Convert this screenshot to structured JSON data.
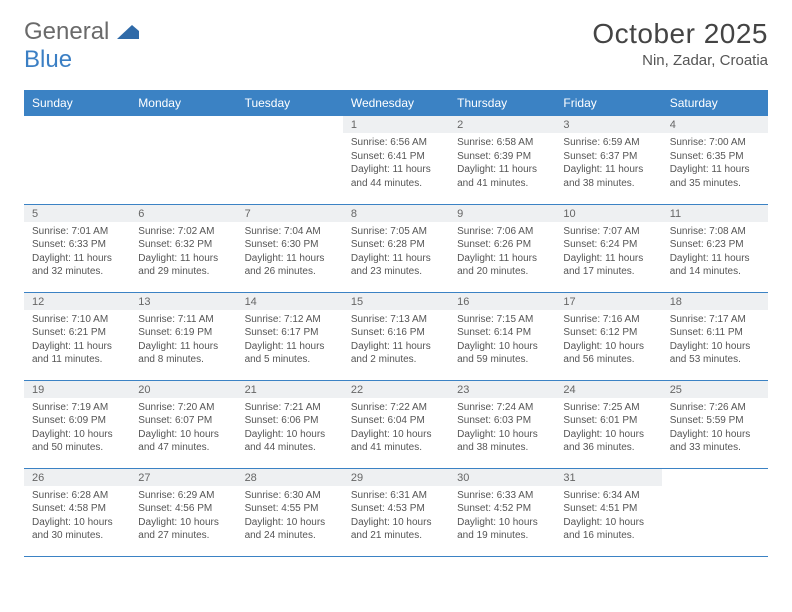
{
  "logo": {
    "general": "General",
    "blue": "Blue"
  },
  "title": "October 2025",
  "subtitle": "Nin, Zadar, Croatia",
  "theme": {
    "header_bg": "#3b82c4",
    "header_text": "#ffffff",
    "daynum_bg": "#eef0f2",
    "row_border": "#3b82c4",
    "body_text": "#555555",
    "title_color": "#444444",
    "logo_gray": "#6a6a6a",
    "logo_blue": "#3b7fc4"
  },
  "weekdays": [
    "Sunday",
    "Monday",
    "Tuesday",
    "Wednesday",
    "Thursday",
    "Friday",
    "Saturday"
  ],
  "weeks": [
    [
      null,
      null,
      null,
      {
        "n": "1",
        "l1": "Sunrise: 6:56 AM",
        "l2": "Sunset: 6:41 PM",
        "l3": "Daylight: 11 hours",
        "l4": "and 44 minutes."
      },
      {
        "n": "2",
        "l1": "Sunrise: 6:58 AM",
        "l2": "Sunset: 6:39 PM",
        "l3": "Daylight: 11 hours",
        "l4": "and 41 minutes."
      },
      {
        "n": "3",
        "l1": "Sunrise: 6:59 AM",
        "l2": "Sunset: 6:37 PM",
        "l3": "Daylight: 11 hours",
        "l4": "and 38 minutes."
      },
      {
        "n": "4",
        "l1": "Sunrise: 7:00 AM",
        "l2": "Sunset: 6:35 PM",
        "l3": "Daylight: 11 hours",
        "l4": "and 35 minutes."
      }
    ],
    [
      {
        "n": "5",
        "l1": "Sunrise: 7:01 AM",
        "l2": "Sunset: 6:33 PM",
        "l3": "Daylight: 11 hours",
        "l4": "and 32 minutes."
      },
      {
        "n": "6",
        "l1": "Sunrise: 7:02 AM",
        "l2": "Sunset: 6:32 PM",
        "l3": "Daylight: 11 hours",
        "l4": "and 29 minutes."
      },
      {
        "n": "7",
        "l1": "Sunrise: 7:04 AM",
        "l2": "Sunset: 6:30 PM",
        "l3": "Daylight: 11 hours",
        "l4": "and 26 minutes."
      },
      {
        "n": "8",
        "l1": "Sunrise: 7:05 AM",
        "l2": "Sunset: 6:28 PM",
        "l3": "Daylight: 11 hours",
        "l4": "and 23 minutes."
      },
      {
        "n": "9",
        "l1": "Sunrise: 7:06 AM",
        "l2": "Sunset: 6:26 PM",
        "l3": "Daylight: 11 hours",
        "l4": "and 20 minutes."
      },
      {
        "n": "10",
        "l1": "Sunrise: 7:07 AM",
        "l2": "Sunset: 6:24 PM",
        "l3": "Daylight: 11 hours",
        "l4": "and 17 minutes."
      },
      {
        "n": "11",
        "l1": "Sunrise: 7:08 AM",
        "l2": "Sunset: 6:23 PM",
        "l3": "Daylight: 11 hours",
        "l4": "and 14 minutes."
      }
    ],
    [
      {
        "n": "12",
        "l1": "Sunrise: 7:10 AM",
        "l2": "Sunset: 6:21 PM",
        "l3": "Daylight: 11 hours",
        "l4": "and 11 minutes."
      },
      {
        "n": "13",
        "l1": "Sunrise: 7:11 AM",
        "l2": "Sunset: 6:19 PM",
        "l3": "Daylight: 11 hours",
        "l4": "and 8 minutes."
      },
      {
        "n": "14",
        "l1": "Sunrise: 7:12 AM",
        "l2": "Sunset: 6:17 PM",
        "l3": "Daylight: 11 hours",
        "l4": "and 5 minutes."
      },
      {
        "n": "15",
        "l1": "Sunrise: 7:13 AM",
        "l2": "Sunset: 6:16 PM",
        "l3": "Daylight: 11 hours",
        "l4": "and 2 minutes."
      },
      {
        "n": "16",
        "l1": "Sunrise: 7:15 AM",
        "l2": "Sunset: 6:14 PM",
        "l3": "Daylight: 10 hours",
        "l4": "and 59 minutes."
      },
      {
        "n": "17",
        "l1": "Sunrise: 7:16 AM",
        "l2": "Sunset: 6:12 PM",
        "l3": "Daylight: 10 hours",
        "l4": "and 56 minutes."
      },
      {
        "n": "18",
        "l1": "Sunrise: 7:17 AM",
        "l2": "Sunset: 6:11 PM",
        "l3": "Daylight: 10 hours",
        "l4": "and 53 minutes."
      }
    ],
    [
      {
        "n": "19",
        "l1": "Sunrise: 7:19 AM",
        "l2": "Sunset: 6:09 PM",
        "l3": "Daylight: 10 hours",
        "l4": "and 50 minutes."
      },
      {
        "n": "20",
        "l1": "Sunrise: 7:20 AM",
        "l2": "Sunset: 6:07 PM",
        "l3": "Daylight: 10 hours",
        "l4": "and 47 minutes."
      },
      {
        "n": "21",
        "l1": "Sunrise: 7:21 AM",
        "l2": "Sunset: 6:06 PM",
        "l3": "Daylight: 10 hours",
        "l4": "and 44 minutes."
      },
      {
        "n": "22",
        "l1": "Sunrise: 7:22 AM",
        "l2": "Sunset: 6:04 PM",
        "l3": "Daylight: 10 hours",
        "l4": "and 41 minutes."
      },
      {
        "n": "23",
        "l1": "Sunrise: 7:24 AM",
        "l2": "Sunset: 6:03 PM",
        "l3": "Daylight: 10 hours",
        "l4": "and 38 minutes."
      },
      {
        "n": "24",
        "l1": "Sunrise: 7:25 AM",
        "l2": "Sunset: 6:01 PM",
        "l3": "Daylight: 10 hours",
        "l4": "and 36 minutes."
      },
      {
        "n": "25",
        "l1": "Sunrise: 7:26 AM",
        "l2": "Sunset: 5:59 PM",
        "l3": "Daylight: 10 hours",
        "l4": "and 33 minutes."
      }
    ],
    [
      {
        "n": "26",
        "l1": "Sunrise: 6:28 AM",
        "l2": "Sunset: 4:58 PM",
        "l3": "Daylight: 10 hours",
        "l4": "and 30 minutes."
      },
      {
        "n": "27",
        "l1": "Sunrise: 6:29 AM",
        "l2": "Sunset: 4:56 PM",
        "l3": "Daylight: 10 hours",
        "l4": "and 27 minutes."
      },
      {
        "n": "28",
        "l1": "Sunrise: 6:30 AM",
        "l2": "Sunset: 4:55 PM",
        "l3": "Daylight: 10 hours",
        "l4": "and 24 minutes."
      },
      {
        "n": "29",
        "l1": "Sunrise: 6:31 AM",
        "l2": "Sunset: 4:53 PM",
        "l3": "Daylight: 10 hours",
        "l4": "and 21 minutes."
      },
      {
        "n": "30",
        "l1": "Sunrise: 6:33 AM",
        "l2": "Sunset: 4:52 PM",
        "l3": "Daylight: 10 hours",
        "l4": "and 19 minutes."
      },
      {
        "n": "31",
        "l1": "Sunrise: 6:34 AM",
        "l2": "Sunset: 4:51 PM",
        "l3": "Daylight: 10 hours",
        "l4": "and 16 minutes."
      },
      null
    ]
  ]
}
